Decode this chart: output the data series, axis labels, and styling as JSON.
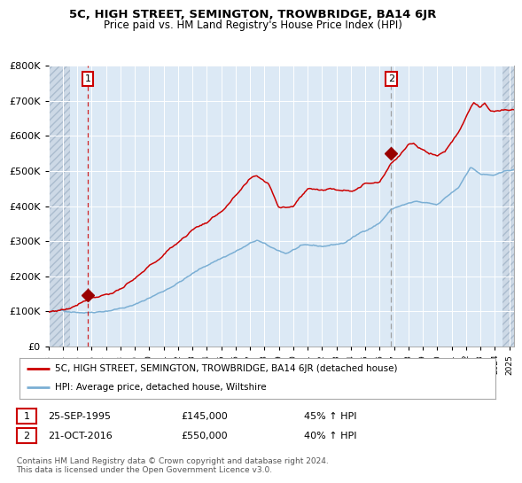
{
  "title": "5C, HIGH STREET, SEMINGTON, TROWBRIDGE, BA14 6JR",
  "subtitle": "Price paid vs. HM Land Registry's House Price Index (HPI)",
  "bg_color": "#ffffff",
  "plot_bg_color": "#dce9f5",
  "hatch_color": "#c8d8e8",
  "grid_color": "#ffffff",
  "red_line_color": "#cc0000",
  "blue_line_color": "#7bafd4",
  "marker_color": "#990000",
  "vline1_color": "#cc0000",
  "vline2_color": "#999999",
  "annotation1": {
    "year": 1995.73,
    "value": 145000,
    "label": "1"
  },
  "annotation2": {
    "year": 2016.8,
    "value": 550000,
    "label": "2"
  },
  "legend_red": "5C, HIGH STREET, SEMINGTON, TROWBRIDGE, BA14 6JR (detached house)",
  "legend_blue": "HPI: Average price, detached house, Wiltshire",
  "note1_label": "1",
  "note1_date": "25-SEP-1995",
  "note1_price": "£145,000",
  "note1_hpi": "45% ↑ HPI",
  "note2_label": "2",
  "note2_date": "21-OCT-2016",
  "note2_price": "£550,000",
  "note2_hpi": "40% ↑ HPI",
  "copyright": "Contains HM Land Registry data © Crown copyright and database right 2024.\nThis data is licensed under the Open Government Licence v3.0.",
  "ylim": [
    0,
    800000
  ],
  "yticks": [
    0,
    100000,
    200000,
    300000,
    400000,
    500000,
    600000,
    700000,
    800000
  ],
  "ytick_labels": [
    "£0",
    "£100K",
    "£200K",
    "£300K",
    "£400K",
    "£500K",
    "£600K",
    "£700K",
    "£800K"
  ],
  "xlim_start": 1993.0,
  "xlim_end": 2025.3,
  "hatch_left_end": 1994.5,
  "hatch_right_start": 2024.5,
  "xtick_years": [
    1993,
    1994,
    1995,
    1996,
    1997,
    1998,
    1999,
    2000,
    2001,
    2002,
    2003,
    2004,
    2005,
    2006,
    2007,
    2008,
    2009,
    2010,
    2011,
    2012,
    2013,
    2014,
    2015,
    2016,
    2017,
    2018,
    2019,
    2020,
    2021,
    2022,
    2023,
    2024,
    2025
  ]
}
